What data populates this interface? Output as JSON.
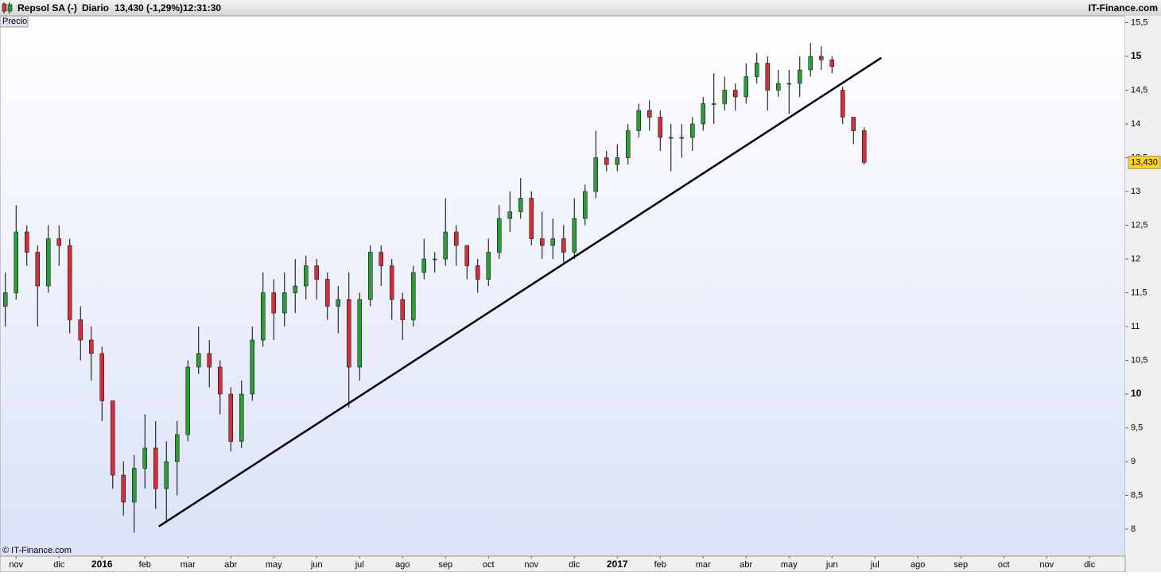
{
  "header": {
    "title": "Repsol SA (-)",
    "period": "Diario",
    "quote": "13,430 (-1,29%)",
    "time": "12:31:30",
    "brand": "IT-Finance.com"
  },
  "chart_data": {
    "type": "candlestick",
    "legend": "Precio",
    "credit": "© IT-Finance.com",
    "up_color": "#2e9a3a",
    "down_color": "#d0303a",
    "categories": [
      null,
      "nov",
      null,
      null,
      null,
      "dic",
      null,
      null,
      null,
      "2016",
      null,
      null,
      null,
      "feb",
      null,
      null,
      null,
      "mar",
      null,
      null,
      null,
      "abr",
      null,
      null,
      null,
      "may",
      null,
      null,
      null,
      "jun",
      null,
      null,
      null,
      "jul",
      null,
      null,
      null,
      "ago",
      null,
      null,
      null,
      "sep",
      null,
      null,
      null,
      "oct",
      null,
      null,
      null,
      "nov",
      null,
      null,
      null,
      "dic",
      null,
      null,
      null,
      "2017",
      null,
      null,
      null,
      "feb",
      null,
      null,
      null,
      "mar",
      null,
      null,
      null,
      "abr",
      null,
      null,
      null,
      "may",
      null,
      null,
      null,
      "jun",
      null,
      null,
      null,
      "jul",
      null,
      null,
      null,
      "ago",
      null,
      null,
      null,
      "sep",
      null,
      null,
      null,
      "oct",
      null,
      null,
      null,
      "nov",
      null,
      null,
      null,
      "dic",
      null,
      null,
      null
    ],
    "open": [
      11.3,
      11.5,
      12.4,
      12.1,
      11.6,
      12.3,
      12.2,
      11.1,
      10.8,
      10.6,
      9.9,
      8.8,
      8.4,
      8.9,
      9.2,
      8.6,
      9.0,
      9.4,
      10.4,
      10.6,
      10.4,
      10.0,
      9.3,
      10.0,
      10.8,
      11.5,
      11.2,
      11.5,
      11.6,
      11.9,
      11.7,
      11.3,
      11.4,
      10.4,
      11.4,
      12.1,
      11.9,
      11.4,
      11.1,
      11.8,
      12.0,
      12.0,
      12.4,
      12.2,
      11.9,
      11.7,
      12.1,
      12.6,
      12.7,
      12.9,
      12.3,
      12.2,
      12.3,
      12.1,
      12.6,
      13.0,
      13.5,
      13.4,
      13.5,
      13.9,
      14.2,
      14.1,
      13.8,
      13.8,
      13.8,
      14.0,
      14.3,
      14.3,
      14.5,
      14.4,
      14.7,
      14.9,
      14.5,
      14.6,
      14.6,
      14.8,
      15.0,
      14.95,
      14.5,
      14.1,
      13.9,
      null,
      null,
      null,
      null,
      null,
      null,
      null,
      null,
      null,
      null,
      null,
      null,
      null,
      null,
      null,
      null,
      null,
      null,
      null,
      null,
      null,
      null,
      null,
      null
    ],
    "high": [
      11.8,
      12.8,
      12.5,
      12.2,
      12.5,
      12.5,
      12.3,
      11.3,
      11.0,
      10.7,
      9.9,
      9.0,
      9.1,
      9.7,
      9.6,
      9.3,
      9.6,
      10.5,
      11.0,
      10.8,
      10.5,
      10.1,
      10.2,
      11.0,
      11.8,
      11.7,
      11.8,
      12.0,
      12.05,
      12.0,
      11.8,
      11.6,
      11.8,
      11.5,
      12.2,
      12.2,
      12.0,
      11.5,
      11.9,
      12.3,
      12.1,
      12.9,
      12.5,
      12.2,
      12.0,
      12.3,
      12.8,
      13.0,
      13.2,
      13.0,
      12.7,
      12.6,
      12.5,
      12.9,
      13.1,
      13.9,
      13.6,
      13.7,
      14.0,
      14.3,
      14.35,
      14.2,
      14.0,
      14.0,
      14.1,
      14.4,
      14.75,
      14.7,
      14.6,
      14.9,
      15.05,
      15.0,
      14.8,
      14.8,
      15.0,
      15.2,
      15.15,
      15.0,
      14.55,
      14.1,
      13.95,
      null,
      null,
      null,
      null,
      null,
      null,
      null,
      null,
      null,
      null,
      null,
      null,
      null,
      null,
      null,
      null,
      null,
      null,
      null,
      null,
      null,
      null,
      null,
      null
    ],
    "low": [
      11.0,
      11.4,
      11.9,
      11.0,
      11.5,
      11.9,
      10.9,
      10.5,
      10.2,
      9.6,
      8.6,
      8.2,
      7.95,
      8.6,
      8.3,
      8.1,
      8.5,
      9.3,
      10.3,
      10.1,
      9.7,
      9.15,
      9.2,
      9.9,
      10.7,
      10.8,
      11.0,
      11.2,
      11.4,
      11.4,
      11.1,
      10.9,
      9.8,
      10.2,
      11.3,
      11.6,
      11.1,
      10.8,
      11.0,
      11.7,
      11.8,
      11.9,
      11.9,
      11.7,
      11.5,
      11.6,
      12.0,
      12.4,
      12.6,
      12.2,
      12.0,
      12.0,
      11.95,
      12.0,
      12.5,
      12.9,
      13.3,
      13.3,
      13.4,
      13.8,
      13.9,
      13.6,
      13.3,
      13.5,
      13.6,
      13.9,
      14.0,
      14.2,
      14.2,
      14.3,
      14.6,
      14.2,
      14.4,
      14.15,
      14.4,
      14.7,
      14.8,
      14.75,
      14.0,
      13.7,
      13.4,
      null,
      null,
      null,
      null,
      null,
      null,
      null,
      null,
      null,
      null,
      null,
      null,
      null,
      null,
      null,
      null,
      null,
      null,
      null,
      null,
      null,
      null,
      null,
      null
    ],
    "close": [
      11.5,
      12.4,
      12.1,
      11.6,
      12.3,
      12.2,
      11.1,
      10.8,
      10.6,
      9.9,
      8.8,
      8.4,
      8.9,
      9.2,
      8.6,
      9.0,
      9.4,
      10.4,
      10.6,
      10.4,
      10.0,
      9.3,
      10.0,
      10.8,
      11.5,
      11.2,
      11.5,
      11.6,
      11.9,
      11.7,
      11.3,
      11.4,
      10.4,
      11.4,
      12.1,
      11.9,
      11.4,
      11.1,
      11.8,
      12.0,
      12.0,
      12.4,
      12.2,
      11.9,
      11.7,
      12.1,
      12.6,
      12.7,
      12.9,
      12.3,
      12.2,
      12.3,
      12.1,
      12.6,
      13.0,
      13.5,
      13.4,
      13.5,
      13.9,
      14.2,
      14.1,
      13.8,
      13.8,
      13.8,
      14.0,
      14.3,
      14.3,
      14.5,
      14.4,
      14.7,
      14.9,
      14.5,
      14.6,
      14.6,
      14.8,
      15.0,
      14.95,
      14.85,
      14.1,
      13.9,
      13.43,
      null,
      null,
      null,
      null,
      null,
      null,
      null,
      null,
      null,
      null,
      null,
      null,
      null,
      null,
      null,
      null,
      null,
      null,
      null,
      null,
      null,
      null,
      null,
      null
    ],
    "ylim": [
      7.6,
      15.6
    ],
    "yticks": [
      8,
      {
        "value": 8.5,
        "label": "8,5"
      },
      9,
      {
        "value": 9.5,
        "label": "9,5"
      },
      10,
      {
        "value": 10.5,
        "label": "10,5"
      },
      11,
      {
        "value": 11.5,
        "label": "11,5"
      },
      12,
      {
        "value": 12.5,
        "label": "12,5"
      },
      13,
      {
        "value": 13.5,
        "label": "13,5"
      },
      14,
      {
        "value": 14.5,
        "label": "14,5"
      },
      15,
      {
        "value": 15.5,
        "label": "15,5"
      }
    ],
    "price_label": {
      "value": 13.43,
      "label": "13,430"
    },
    "trendline": {
      "x": [
        14.3,
        81.6
      ],
      "values": [
        8.04,
        14.98
      ]
    }
  }
}
